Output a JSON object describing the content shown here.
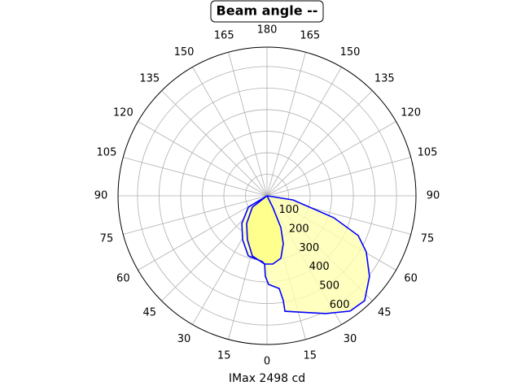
{
  "chart_data": {
    "type": "polar",
    "title": "Beam angle --",
    "xlabel": "IMax 2498 cd",
    "rlim": [
      0,
      690
    ],
    "rticks": [
      100,
      200,
      300,
      400,
      500,
      600
    ],
    "thetaticks": [
      0,
      15,
      30,
      45,
      60,
      75,
      90,
      105,
      120,
      135,
      150,
      165,
      180,
      {
        "value": 195,
        "label": "165"
      },
      {
        "value": 210,
        "label": "150"
      },
      {
        "value": 225,
        "label": "135"
      },
      {
        "value": 240,
        "label": "120"
      },
      {
        "value": 255,
        "label": "105"
      },
      {
        "value": 270,
        "label": "90"
      },
      {
        "value": 285,
        "label": "75"
      },
      {
        "value": 300,
        "label": "60"
      },
      {
        "value": 315,
        "label": "45"
      },
      {
        "value": 330,
        "label": "30"
      },
      {
        "value": 345,
        "label": "15"
      }
    ],
    "grid": true,
    "series": [
      {
        "color": "#0000ff",
        "fill": "#ffffb0",
        "x": [
          90,
          81,
          71.8,
          66.4,
          60.5,
          51.8,
          42.9,
          35.7,
          26.4,
          8.8,
          8.8,
          7.5,
          1,
          -1.2,
          -2,
          -4.2,
          -17.3,
          -29,
          -42.4,
          -58.7,
          -90
        ],
        "values": [
          0,
          122,
          325,
          461,
          528,
          604,
          664,
          659,
          610,
          542,
          492,
          434,
          411,
          373,
          317,
          306,
          292,
          233,
          173,
          101,
          0
        ]
      },
      {
        "color": "#0000ff",
        "fill": "#ffff80",
        "x": [
          30,
          26.6,
          23.6,
          18.7,
          12.5,
          4.8,
          -2,
          -13.7,
          -24,
          -36.3,
          -52.1,
          -90
        ],
        "values": [
          0,
          59,
          160,
          235,
          297,
          318,
          317,
          287,
          223,
          159,
          86,
          0
        ]
      }
    ]
  }
}
